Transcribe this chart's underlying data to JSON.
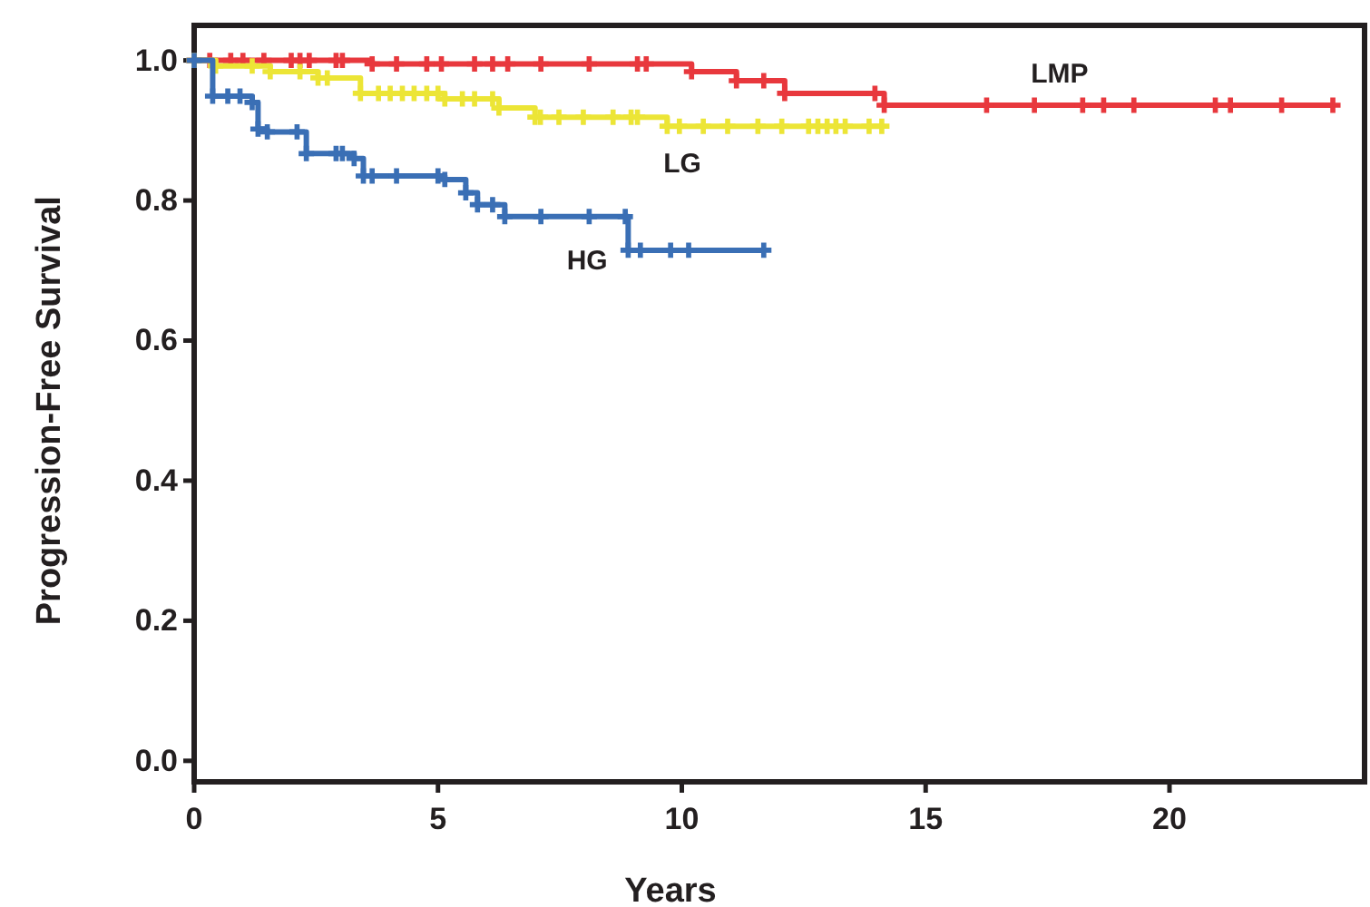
{
  "chart_data": {
    "type": "step",
    "xlabel": "Years",
    "ylabel": "Progression-Free Survival",
    "xlim": [
      0,
      24
    ],
    "ylim": [
      -0.03,
      1.05
    ],
    "xticks": [
      0,
      5,
      10,
      15,
      20
    ],
    "yticks": [
      {
        "value": 0,
        "label": "0.0"
      },
      {
        "value": 0.2,
        "label": "0.2"
      },
      {
        "value": 0.4,
        "label": "0.4"
      },
      {
        "value": 0.6,
        "label": "0.6"
      },
      {
        "value": 0.8,
        "label": "0.8"
      },
      {
        "value": 1,
        "label": "1.0"
      }
    ],
    "grid": false,
    "legend": false,
    "marker": "cross",
    "line_style": "solid",
    "series": [
      {
        "name": "LMP",
        "color": "#e8383d",
        "x": [
          0,
          0.32,
          0.75,
          1.0,
          1.43,
          1.99,
          2.17,
          2.36,
          2.91,
          3.04,
          3.65,
          4.15,
          4.77,
          5.07,
          5.75,
          6.12,
          6.43,
          7.11,
          8.1,
          9.09,
          9.27,
          10.2,
          11.12,
          11.68,
          12.11,
          13.96,
          14.15,
          16.25,
          17.23,
          18.22,
          18.65,
          19.27,
          20.94,
          21.25,
          22.3,
          23.35
        ],
        "values": [
          1,
          1,
          1,
          1,
          1,
          1,
          1,
          1,
          1,
          1,
          0.995,
          0.995,
          0.995,
          0.995,
          0.995,
          0.995,
          0.995,
          0.995,
          0.995,
          0.995,
          0.995,
          0.984,
          0.971,
          0.971,
          0.953,
          0.953,
          0.936,
          0.936,
          0.936,
          0.936,
          0.936,
          0.936,
          0.936,
          0.936,
          0.936,
          0.936
        ]
      },
      {
        "name": "LG",
        "color": "#ece536",
        "x": [
          0,
          0.44,
          1.19,
          1.56,
          2.17,
          2.54,
          2.73,
          3.41,
          3.78,
          4.02,
          4.27,
          4.51,
          4.77,
          5.0,
          5.14,
          5.5,
          5.75,
          6.12,
          6.25,
          6.99,
          7.1,
          7.48,
          7.98,
          8.59,
          8.96,
          9.09,
          9.7,
          9.95,
          10.44,
          10.94,
          11.56,
          12.05,
          12.6,
          12.79,
          12.98,
          13.16,
          13.35,
          13.84,
          14.1
        ],
        "values": [
          1,
          0.992,
          0.992,
          0.984,
          0.984,
          0.975,
          0.975,
          0.953,
          0.953,
          0.953,
          0.953,
          0.953,
          0.953,
          0.953,
          0.945,
          0.945,
          0.945,
          0.945,
          0.932,
          0.919,
          0.919,
          0.919,
          0.919,
          0.919,
          0.919,
          0.919,
          0.906,
          0.906,
          0.906,
          0.906,
          0.906,
          0.906,
          0.906,
          0.906,
          0.906,
          0.906,
          0.906,
          0.906,
          0.906
        ]
      },
      {
        "name": "HG",
        "color": "#3a6fb5",
        "x": [
          0,
          0.38,
          0.69,
          0.94,
          1.19,
          1.31,
          1.5,
          2.11,
          2.3,
          2.91,
          3.04,
          3.28,
          3.47,
          3.65,
          4.15,
          5.0,
          5.14,
          5.57,
          5.81,
          6.12,
          6.37,
          7.11,
          8.1,
          8.84,
          8.9,
          9.15,
          9.77,
          10.14,
          11.68
        ],
        "values": [
          1,
          0.949,
          0.949,
          0.949,
          0.94,
          0.902,
          0.898,
          0.898,
          0.867,
          0.867,
          0.867,
          0.86,
          0.835,
          0.835,
          0.835,
          0.835,
          0.83,
          0.811,
          0.794,
          0.794,
          0.777,
          0.777,
          0.777,
          0.777,
          0.729,
          0.729,
          0.729,
          0.729,
          0.729
        ]
      }
    ]
  }
}
